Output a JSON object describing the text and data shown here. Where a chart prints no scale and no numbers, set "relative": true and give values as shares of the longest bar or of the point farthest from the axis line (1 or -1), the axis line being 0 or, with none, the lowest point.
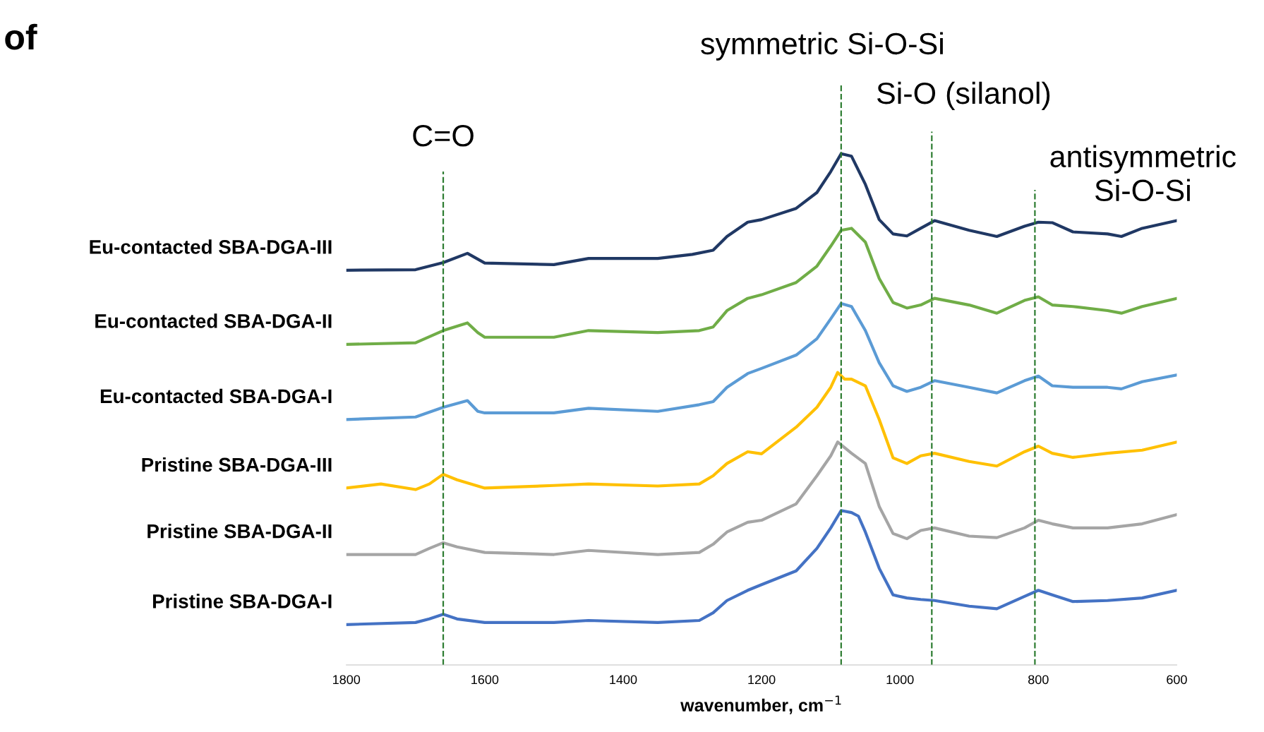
{
  "chart_data": {
    "type": "line",
    "relative": true,
    "xlabel": "wavenumber, cm$^{−1}$",
    "x": [
      1800,
      1700,
      1660,
      1625,
      1600,
      1500,
      1450,
      1350,
      1300,
      1270,
      1250,
      1220,
      1200,
      1150,
      1120,
      1100,
      1085,
      1070,
      1050,
      1030,
      1010,
      990,
      970,
      950,
      900,
      860,
      820,
      800,
      780,
      750,
      700,
      680,
      650,
      600
    ],
    "xlim": [
      1800,
      600
    ],
    "xticks": [
      1800,
      1600,
      1400,
      1200,
      1000,
      800,
      600
    ],
    "grid": false,
    "legend": false,
    "marker": "none",
    "line_style": "solid",
    "series": [
      {
        "name": "Eu-contacted SBA-DGA-III",
        "color": "#203864",
        "values": [
          0.772,
          0.773,
          0.787,
          0.805,
          0.786,
          0.783,
          0.795,
          0.795,
          0.803,
          0.811,
          0.838,
          0.866,
          0.871,
          0.893,
          0.924,
          0.965,
          1,
          0.995,
          0.94,
          0.871,
          0.843,
          0.839,
          0.854,
          0.869,
          0.85,
          0.838,
          0.858,
          0.866,
          0.865,
          0.847,
          0.843,
          0.838,
          0.854,
          0.869
        ]
      },
      {
        "name": "Eu-contacted SBA-DGA-II",
        "color": "#70ad47",
        "x": [
          1800,
          1700,
          1660,
          1625,
          1610,
          1600,
          1500,
          1450,
          1350,
          1290,
          1270,
          1250,
          1220,
          1200,
          1150,
          1120,
          1100,
          1085,
          1070,
          1050,
          1030,
          1010,
          990,
          970,
          950,
          900,
          860,
          820,
          800,
          780,
          750,
          700,
          680,
          650,
          600
        ],
        "values": [
          0.627,
          0.63,
          0.654,
          0.669,
          0.65,
          0.641,
          0.641,
          0.654,
          0.65,
          0.654,
          0.661,
          0.693,
          0.717,
          0.724,
          0.748,
          0.78,
          0.819,
          0.85,
          0.854,
          0.827,
          0.756,
          0.709,
          0.698,
          0.704,
          0.717,
          0.704,
          0.688,
          0.713,
          0.72,
          0.704,
          0.701,
          0.693,
          0.688,
          0.701,
          0.717
        ]
      },
      {
        "name": "Eu-contacted SBA-DGA-I",
        "color": "#5b9bd5",
        "x": [
          1800,
          1700,
          1660,
          1625,
          1610,
          1600,
          1500,
          1450,
          1350,
          1290,
          1270,
          1250,
          1220,
          1200,
          1150,
          1120,
          1100,
          1085,
          1070,
          1050,
          1030,
          1010,
          990,
          970,
          950,
          900,
          860,
          820,
          800,
          780,
          750,
          700,
          680,
          650,
          600
        ],
        "values": [
          0.48,
          0.485,
          0.504,
          0.517,
          0.496,
          0.493,
          0.493,
          0.502,
          0.496,
          0.509,
          0.515,
          0.543,
          0.57,
          0.58,
          0.606,
          0.638,
          0.677,
          0.707,
          0.701,
          0.654,
          0.591,
          0.546,
          0.535,
          0.543,
          0.556,
          0.543,
          0.532,
          0.556,
          0.565,
          0.546,
          0.543,
          0.543,
          0.54,
          0.554,
          0.567
        ]
      },
      {
        "name": "Pristine SBA-DGA-III",
        "color": "#ffc000",
        "x": [
          1800,
          1750,
          1700,
          1680,
          1660,
          1640,
          1600,
          1500,
          1450,
          1350,
          1290,
          1270,
          1250,
          1220,
          1200,
          1150,
          1120,
          1100,
          1090,
          1080,
          1070,
          1050,
          1030,
          1010,
          990,
          970,
          950,
          900,
          860,
          820,
          800,
          780,
          750,
          700,
          650,
          600
        ],
        "values": [
          0.346,
          0.354,
          0.343,
          0.354,
          0.373,
          0.362,
          0.346,
          0.351,
          0.354,
          0.35,
          0.354,
          0.37,
          0.394,
          0.417,
          0.413,
          0.465,
          0.504,
          0.543,
          0.572,
          0.559,
          0.559,
          0.546,
          0.48,
          0.405,
          0.394,
          0.409,
          0.414,
          0.398,
          0.389,
          0.417,
          0.428,
          0.414,
          0.406,
          0.414,
          0.42,
          0.436
        ]
      },
      {
        "name": "Pristine SBA-DGA-II",
        "color": "#a5a5a5",
        "x": [
          1800,
          1700,
          1680,
          1660,
          1640,
          1600,
          1500,
          1450,
          1350,
          1290,
          1270,
          1250,
          1220,
          1200,
          1150,
          1120,
          1100,
          1090,
          1080,
          1070,
          1050,
          1030,
          1010,
          990,
          970,
          950,
          900,
          860,
          820,
          800,
          780,
          750,
          700,
          650,
          600
        ],
        "values": [
          0.216,
          0.216,
          0.228,
          0.239,
          0.231,
          0.22,
          0.216,
          0.224,
          0.216,
          0.22,
          0.236,
          0.26,
          0.279,
          0.283,
          0.315,
          0.37,
          0.409,
          0.436,
          0.425,
          0.414,
          0.394,
          0.31,
          0.257,
          0.247,
          0.263,
          0.268,
          0.252,
          0.249,
          0.268,
          0.283,
          0.276,
          0.268,
          0.268,
          0.276,
          0.294
        ]
      },
      {
        "name": "Pristine SBA-DGA-I",
        "color": "#4472c4",
        "x": [
          1800,
          1700,
          1680,
          1660,
          1640,
          1600,
          1500,
          1450,
          1350,
          1290,
          1270,
          1250,
          1220,
          1200,
          1150,
          1120,
          1100,
          1085,
          1070,
          1060,
          1050,
          1030,
          1010,
          990,
          970,
          950,
          900,
          860,
          820,
          800,
          780,
          750,
          700,
          650,
          600
        ],
        "values": [
          0.079,
          0.083,
          0.09,
          0.099,
          0.09,
          0.083,
          0.083,
          0.087,
          0.083,
          0.087,
          0.102,
          0.126,
          0.146,
          0.157,
          0.184,
          0.228,
          0.268,
          0.302,
          0.298,
          0.291,
          0.26,
          0.189,
          0.137,
          0.131,
          0.128,
          0.126,
          0.115,
          0.11,
          0.134,
          0.146,
          0.137,
          0.124,
          0.126,
          0.131,
          0.146
        ]
      }
    ],
    "ref_lines": [
      {
        "axis": "x",
        "value": 1660,
        "label": "C=O",
        "color": "#2e7d32",
        "line_style": "dashed"
      },
      {
        "axis": "x",
        "value": 1085,
        "label": "symmetric Si-O-Si",
        "color": "#2e7d32",
        "line_style": "dashed"
      },
      {
        "axis": "x",
        "value": 954,
        "label": "Si-O (silanol)",
        "color": "#2e7d32",
        "line_style": "dashed"
      },
      {
        "axis": "x",
        "value": 805,
        "label": "antisymmetric\nSi-O-Si",
        "color": "#2e7d32",
        "line_style": "dashed"
      }
    ],
    "annotations": [
      "of"
    ]
  }
}
